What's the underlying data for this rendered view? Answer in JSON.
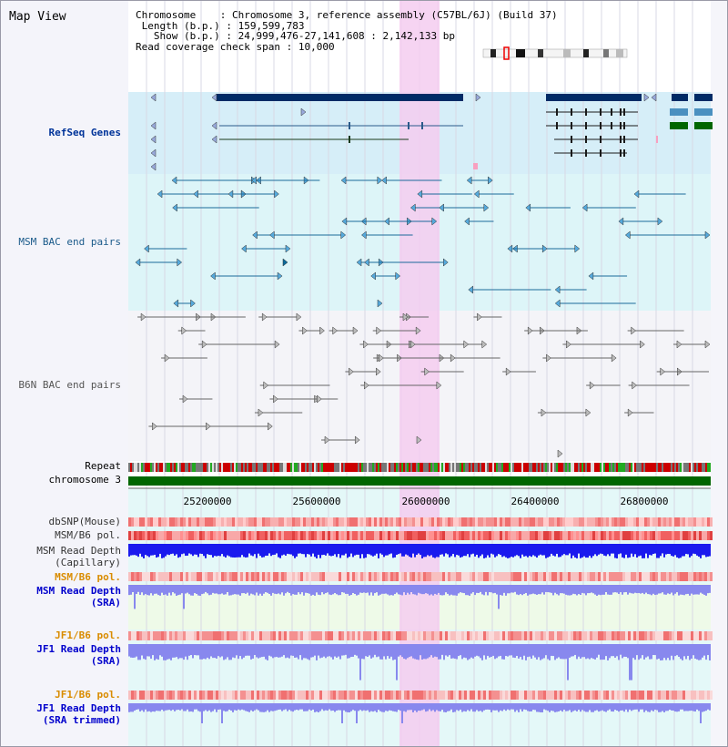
{
  "title": "Map View",
  "info": {
    "chromosome_label": "Chromosome",
    "chromosome_value": "Chromosome 3, reference assembly (C57BL/6J) (Build 37)",
    "length_label": "Length (b.p.)",
    "length_value": "159,599,783",
    "show_label": "Show (b.p.)",
    "show_value": "24,999,476-27,141,608 : 2,142,133 bp",
    "span_label": "Read coverage check span",
    "span_value": "10,000"
  },
  "tracks": {
    "refseq": "RefSeq Genes",
    "msm_bac": "MSM BAC end pairs",
    "b6n_bac": "B6N BAC end pairs",
    "repeat": "Repeat",
    "chromosome": "chromosome 3",
    "dbsnp": "dbSNP(Mouse)",
    "msm_b6_pol": "MSM/B6 pol.",
    "msm_depth_cap_1": "MSM Read Depth",
    "msm_depth_cap_2": "(Capillary)",
    "msm_b6_pol_sra": "MSM/B6 pol.",
    "msm_depth_sra_1": "MSM Read Depth",
    "msm_depth_sra_2": "(SRA)",
    "jf1_b6_pol": "JF1/B6 pol.",
    "jf1_depth_1": "JF1 Read Depth",
    "jf1_depth_2": "(SRA)",
    "jf1_b6_pol_t": "JF1/B6 pol.",
    "jf1_depth_t_1": "JF1 Read Depth",
    "jf1_depth_t_2": "(SRA trimmed)"
  },
  "axis": {
    "ticks": [
      "25200000",
      "25600000",
      "26000000",
      "26400000",
      "26800000"
    ]
  },
  "colors": {
    "highlight": "#f5ccf0",
    "refseq_bg": "#d6eef8",
    "msm_bg": "#ddf5f8",
    "gene": "#002b66",
    "gene_light": "#4a90c0",
    "gene_green": "#006600",
    "chromosome": "#006600",
    "depth_blue": "#1a1aee",
    "depth_light": "#8888ee"
  }
}
